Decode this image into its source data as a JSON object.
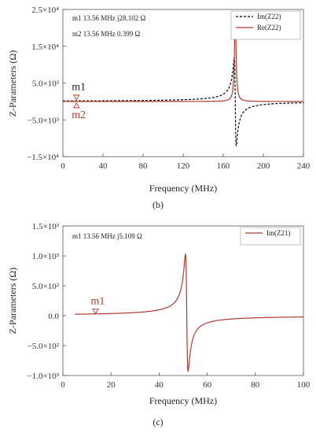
{
  "chart_data": [
    {
      "type": "line",
      "caption": "(b)",
      "xlabel": "Frequency (MHz)",
      "ylabel": "Z-Parameters (Ω)",
      "xlim": [
        0,
        240
      ],
      "ylim": [
        -15000,
        25000
      ],
      "x_ticks": [
        0,
        40,
        80,
        120,
        160,
        200,
        240
      ],
      "x_tick_labels": [
        "0",
        "40",
        "80",
        "120",
        "160",
        "200",
        "240"
      ],
      "y_ticks": [
        -15000,
        -5000,
        5000,
        15000,
        25000
      ],
      "y_tick_labels": [
        "−1.5×10⁴",
        "−5.0×10³",
        "5.0×10³",
        "1.5×10⁴",
        "2.5×10⁴"
      ],
      "grid": false,
      "legend_position": "top-right",
      "series": [
        {
          "name": "Im(Z22)",
          "color": "#000000",
          "style": "dashed",
          "model": "imag",
          "resonance_mhz": 172,
          "peak": 12000,
          "trough": -12000,
          "width": 1.0
        },
        {
          "name": "Re(Z22)",
          "color": "#b03a2e",
          "style": "solid",
          "model": "real",
          "resonance_mhz": 172,
          "peak": 23000,
          "width": 1.0
        }
      ],
      "markers": [
        {
          "name": "m1",
          "x": 13.56,
          "y": 28.102,
          "readout": "m1  13.56 MHz  j28.102 Ω"
        },
        {
          "name": "m2",
          "x": 13.56,
          "y": 0.399,
          "readout": "m2  13.56 MHz  0.399 Ω"
        }
      ]
    },
    {
      "type": "line",
      "caption": "(c)",
      "xlabel": "Frequency (MHz)",
      "ylabel": "Z-Parameters (Ω)",
      "xlim": [
        0,
        100
      ],
      "ylim": [
        -1000,
        1500
      ],
      "x_ticks": [
        0,
        20,
        40,
        60,
        80,
        100
      ],
      "x_tick_labels": [
        "0",
        "20",
        "40",
        "60",
        "80",
        "100"
      ],
      "y_ticks": [
        -1000,
        -500,
        0,
        500,
        1000,
        1500
      ],
      "y_tick_labels": [
        "−1.0×10³",
        "−5.0×10²",
        "0.0",
        "5.0×10²",
        "1.0×10³",
        "1.5×10³"
      ],
      "grid": false,
      "legend_position": "top-right",
      "series": [
        {
          "name": "Im(Z21)",
          "color": "#b03a2e",
          "style": "solid",
          "model": "imag",
          "resonance_mhz": 51.5,
          "peak": 1030,
          "trough": -930,
          "width": 0.55,
          "x_start": 5
        }
      ],
      "markers": [
        {
          "name": "m1",
          "x": 13.56,
          "y": 5.109,
          "readout": "m1  13.56 MHz  j5.109 Ω"
        }
      ]
    }
  ]
}
